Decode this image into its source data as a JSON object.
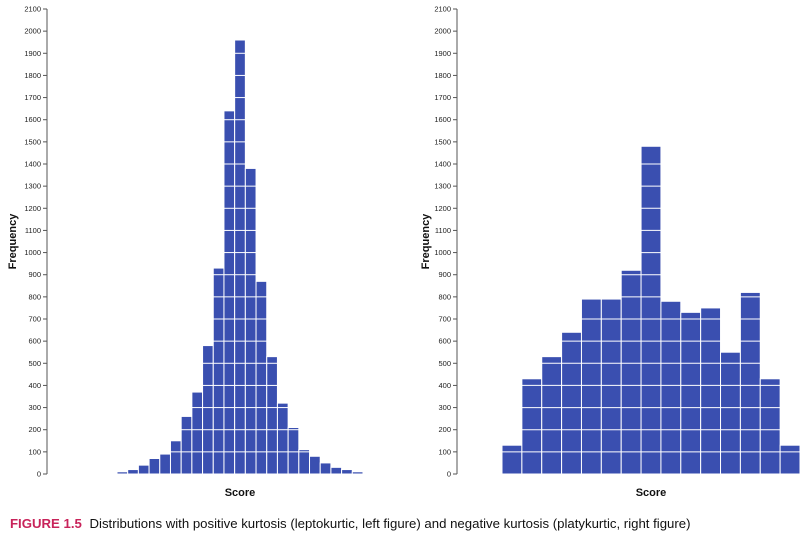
{
  "chart_data": [
    {
      "type": "bar",
      "xlabel": "Score",
      "ylabel": "Frequency",
      "ylim": [
        0,
        2100
      ],
      "yticks": [
        0,
        100,
        200,
        300,
        400,
        500,
        600,
        700,
        800,
        900,
        1000,
        1100,
        1200,
        1300,
        1400,
        1500,
        1600,
        1700,
        1800,
        1900,
        2000,
        2100
      ],
      "grid": false,
      "values": [
        10,
        20,
        40,
        70,
        90,
        150,
        260,
        370,
        580,
        930,
        1640,
        1960,
        1380,
        870,
        530,
        320,
        210,
        110,
        80,
        50,
        30,
        20,
        10
      ]
    },
    {
      "type": "bar",
      "xlabel": "Score",
      "ylabel": "Frequency",
      "ylim": [
        0,
        2100
      ],
      "yticks": [
        0,
        100,
        200,
        300,
        400,
        500,
        600,
        700,
        800,
        900,
        1000,
        1100,
        1200,
        1300,
        1400,
        1500,
        1600,
        1700,
        1800,
        1900,
        2000,
        2100
      ],
      "grid": false,
      "values": [
        130,
        430,
        530,
        640,
        790,
        790,
        920,
        1480,
        780,
        730,
        750,
        550,
        820,
        430,
        130
      ]
    }
  ],
  "caption": {
    "label": "FIGURE 1.5",
    "text": "Distributions with positive kurtosis (leptokurtic, left figure) and negative kurtosis (platykurtic, right figure)"
  },
  "colors": {
    "bar": "#3a4fb0",
    "bar_line": "#ffffff",
    "caption_label": "#c8235a"
  }
}
